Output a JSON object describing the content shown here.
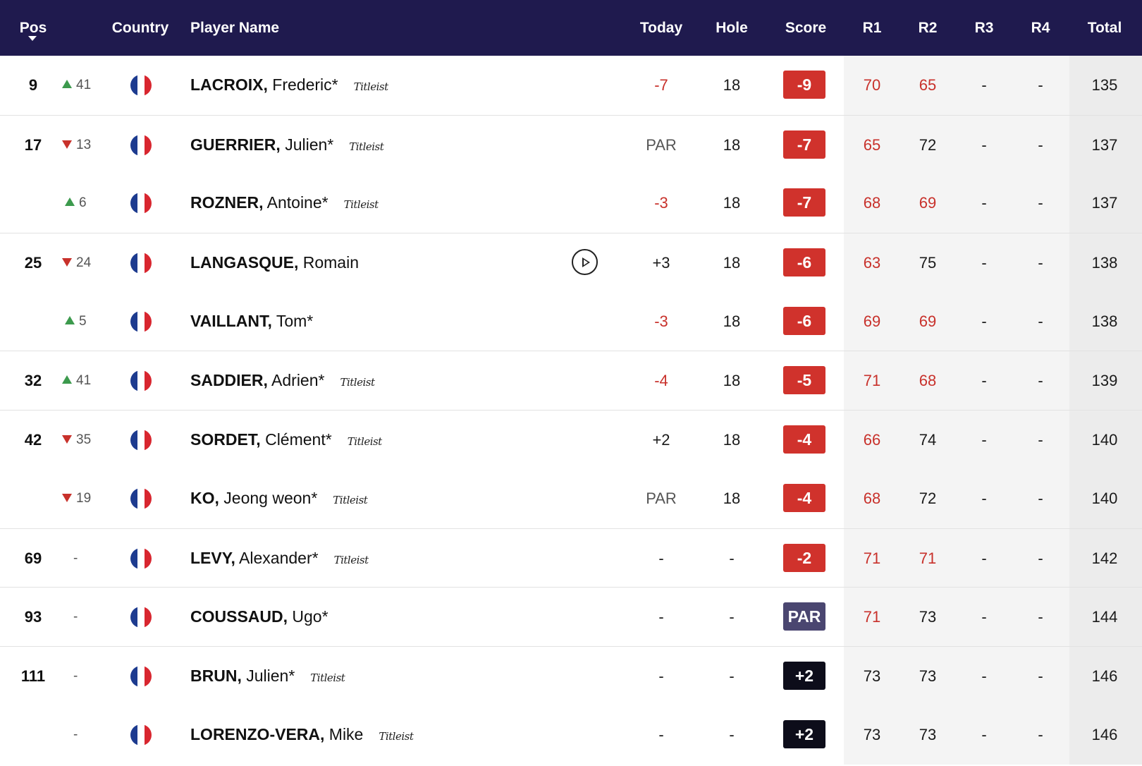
{
  "header": {
    "pos": "Pos",
    "country": "Country",
    "player_name": "Player Name",
    "today": "Today",
    "hole": "Hole",
    "score": "Score",
    "r1": "R1",
    "r2": "R2",
    "r3": "R3",
    "r4": "R4",
    "total": "Total"
  },
  "colors": {
    "header_bg": "#1f1a4e",
    "under_par": "#d0322c",
    "par": "#4a4670",
    "over_par": "#0d0d1a",
    "move_up": "#3c9a4d",
    "move_down": "#c8312b"
  },
  "rows": [
    {
      "pos": "9",
      "move_dir": "up",
      "move": "41",
      "last": "LACROIX,",
      "first": "Frederic*",
      "brand": "Titleist",
      "today": "-7",
      "today_red": true,
      "hole": "18",
      "score": "-9",
      "score_kind": "under",
      "r1": "70",
      "r1_red": true,
      "r2": "65",
      "r2_red": true,
      "r3": "-",
      "r4": "-",
      "total": "135",
      "sep": false
    },
    {
      "pos": "17",
      "move_dir": "down",
      "move": "13",
      "last": "GUERRIER,",
      "first": "Julien*",
      "brand": "Titleist",
      "today": "PAR",
      "today_red": false,
      "hole": "18",
      "score": "-7",
      "score_kind": "under",
      "r1": "65",
      "r1_red": true,
      "r2": "72",
      "r2_red": false,
      "r3": "-",
      "r4": "-",
      "total": "137",
      "sep": true
    },
    {
      "pos": "",
      "move_dir": "up",
      "move": "6",
      "last": "ROZNER,",
      "first": "Antoine*",
      "brand": "Titleist",
      "today": "-3",
      "today_red": true,
      "hole": "18",
      "score": "-7",
      "score_kind": "under",
      "r1": "68",
      "r1_red": true,
      "r2": "69",
      "r2_red": true,
      "r3": "-",
      "r4": "-",
      "total": "137",
      "sep": false
    },
    {
      "pos": "25",
      "move_dir": "down",
      "move": "24",
      "last": "LANGASQUE,",
      "first": "Romain",
      "brand": "",
      "play": true,
      "today": "+3",
      "today_red": false,
      "hole": "18",
      "score": "-6",
      "score_kind": "under",
      "r1": "63",
      "r1_red": true,
      "r2": "75",
      "r2_red": false,
      "r3": "-",
      "r4": "-",
      "total": "138",
      "sep": true
    },
    {
      "pos": "",
      "move_dir": "up",
      "move": "5",
      "last": "VAILLANT,",
      "first": "Tom*",
      "brand": "",
      "today": "-3",
      "today_red": true,
      "hole": "18",
      "score": "-6",
      "score_kind": "under",
      "r1": "69",
      "r1_red": true,
      "r2": "69",
      "r2_red": true,
      "r3": "-",
      "r4": "-",
      "total": "138",
      "sep": false
    },
    {
      "pos": "32",
      "move_dir": "up",
      "move": "41",
      "last": "SADDIER,",
      "first": "Adrien*",
      "brand": "Titleist",
      "today": "-4",
      "today_red": true,
      "hole": "18",
      "score": "-5",
      "score_kind": "under",
      "r1": "71",
      "r1_red": true,
      "r2": "68",
      "r2_red": true,
      "r3": "-",
      "r4": "-",
      "total": "139",
      "sep": true
    },
    {
      "pos": "42",
      "move_dir": "down",
      "move": "35",
      "last": "SORDET,",
      "first": "Clément*",
      "brand": "Titleist",
      "today": "+2",
      "today_red": false,
      "hole": "18",
      "score": "-4",
      "score_kind": "under",
      "r1": "66",
      "r1_red": true,
      "r2": "74",
      "r2_red": false,
      "r3": "-",
      "r4": "-",
      "total": "140",
      "sep": true
    },
    {
      "pos": "",
      "move_dir": "down",
      "move": "19",
      "last": "KO,",
      "first": "Jeong weon*",
      "brand": "Titleist",
      "today": "PAR",
      "today_red": false,
      "hole": "18",
      "score": "-4",
      "score_kind": "under",
      "r1": "68",
      "r1_red": true,
      "r2": "72",
      "r2_red": false,
      "r3": "-",
      "r4": "-",
      "total": "140",
      "sep": false
    },
    {
      "pos": "69",
      "move_dir": "none",
      "move": "-",
      "last": "LEVY,",
      "first": "Alexander*",
      "brand": "Titleist",
      "today": "-",
      "today_red": false,
      "hole": "-",
      "score": "-2",
      "score_kind": "under",
      "r1": "71",
      "r1_red": true,
      "r2": "71",
      "r2_red": true,
      "r3": "-",
      "r4": "-",
      "total": "142",
      "sep": true
    },
    {
      "pos": "93",
      "move_dir": "none",
      "move": "-",
      "last": "COUSSAUD,",
      "first": "Ugo*",
      "brand": "",
      "today": "-",
      "today_red": false,
      "hole": "-",
      "score": "PAR",
      "score_kind": "par",
      "r1": "71",
      "r1_red": true,
      "r2": "73",
      "r2_red": false,
      "r3": "-",
      "r4": "-",
      "total": "144",
      "sep": true
    },
    {
      "pos": "111",
      "move_dir": "none",
      "move": "-",
      "last": "BRUN,",
      "first": "Julien*",
      "brand": "Titleist",
      "today": "-",
      "today_red": false,
      "hole": "-",
      "score": "+2",
      "score_kind": "over",
      "r1": "73",
      "r1_red": false,
      "r2": "73",
      "r2_red": false,
      "r3": "-",
      "r4": "-",
      "total": "146",
      "sep": true
    },
    {
      "pos": "",
      "move_dir": "none",
      "move": "-",
      "last": "LORENZO-VERA,",
      "first": "Mike",
      "brand": "Titleist",
      "today": "-",
      "today_red": false,
      "hole": "-",
      "score": "+2",
      "score_kind": "over",
      "r1": "73",
      "r1_red": false,
      "r2": "73",
      "r2_red": false,
      "r3": "-",
      "r4": "-",
      "total": "146",
      "sep": false
    }
  ]
}
